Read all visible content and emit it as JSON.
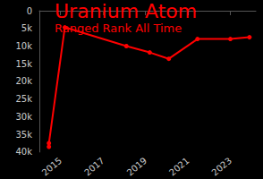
{
  "chart_data": {
    "type": "line",
    "title": "Uranium Atom",
    "subtitle": "Ranged Rank All Time",
    "x": [
      2014.45,
      2014.45,
      2015.2,
      2018.1,
      2019.2,
      2020.1,
      2021.45,
      2023.0,
      2023.9
    ],
    "values": [
      38500,
      37500,
      4700,
      10000,
      11800,
      13600,
      8000,
      8000,
      7500
    ],
    "color": "#ff0000",
    "marker": "circle",
    "xlim": [
      2014,
      2024.2
    ],
    "xticks": [
      2015,
      2017,
      2019,
      2021,
      2023
    ],
    "ylim": [
      0,
      40000
    ],
    "yticks": [
      0,
      {
        "value": 5000,
        "label": "5k"
      },
      {
        "value": 10000,
        "label": "10k"
      },
      {
        "value": 15000,
        "label": "15k"
      },
      {
        "value": 20000,
        "label": "20k"
      },
      {
        "value": 25000,
        "label": "25k"
      },
      {
        "value": 30000,
        "label": "30k"
      },
      {
        "value": 35000,
        "label": "35k"
      },
      {
        "value": 40000,
        "label": "40k"
      }
    ],
    "grid": false
  }
}
